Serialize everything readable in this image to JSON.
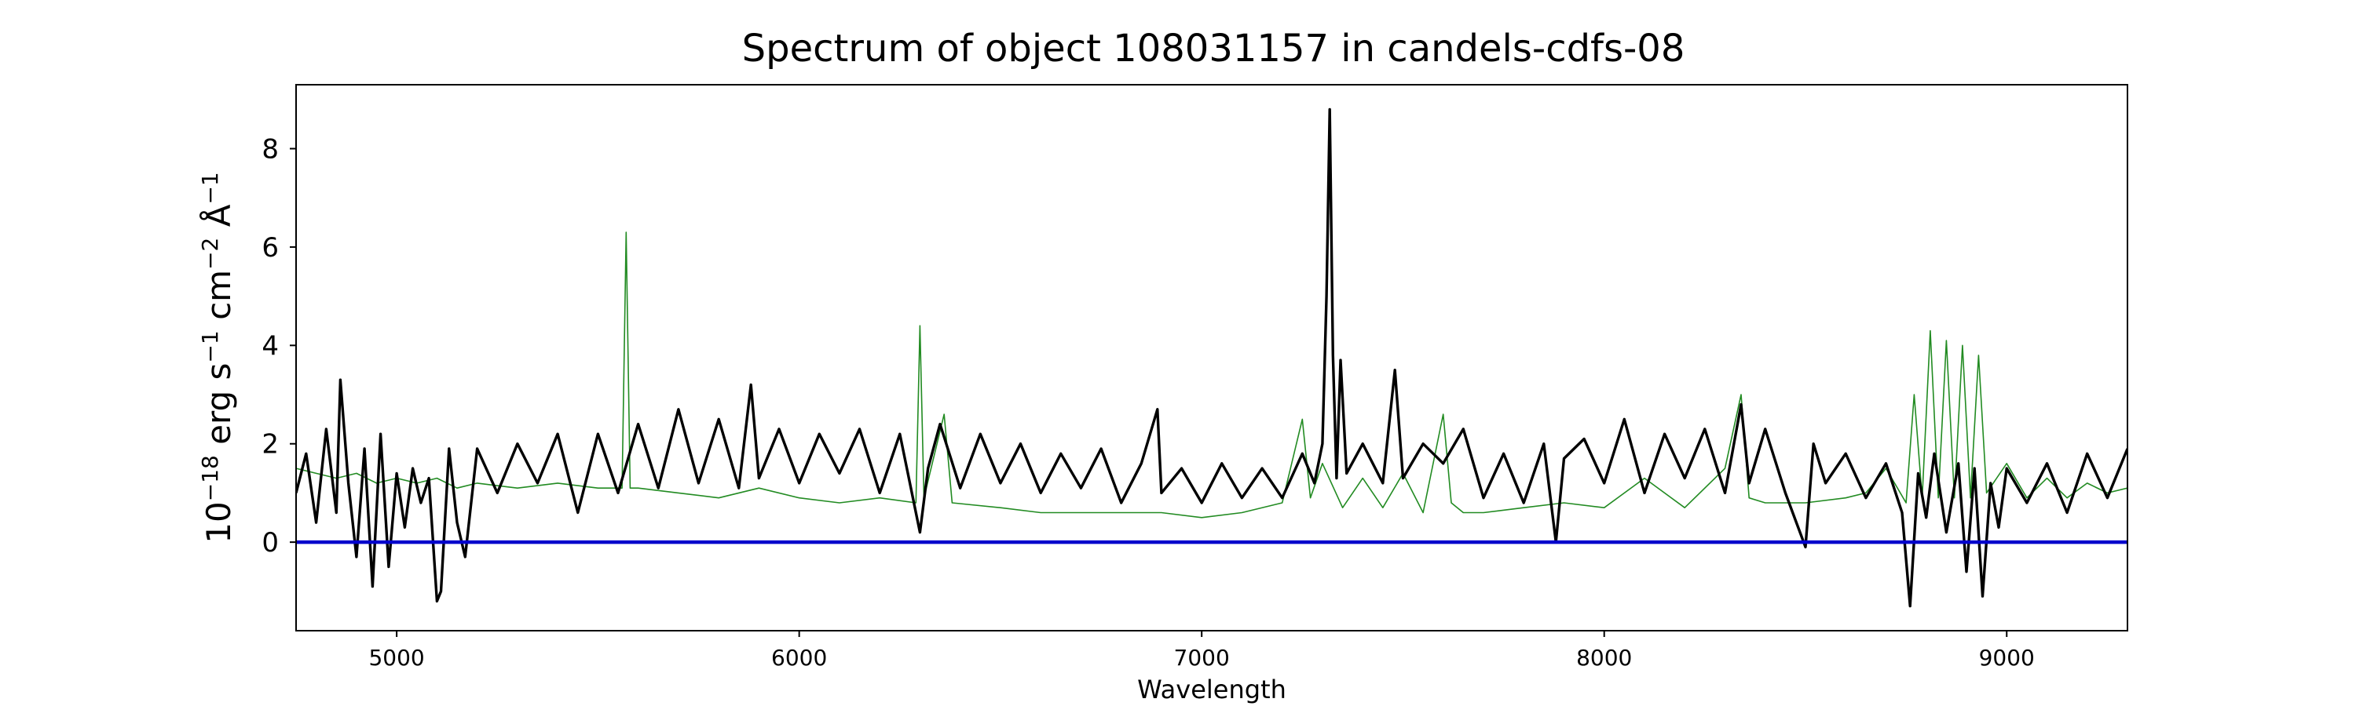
{
  "chart_data": {
    "type": "line",
    "title": "Spectrum of object 108031157 in candels-cdfs-08",
    "xlabel": "Wavelength",
    "ylabel_parts": [
      "10",
      "−18",
      " erg s",
      "−1",
      " cm",
      "−2",
      " Å",
      "−1"
    ],
    "xlim": [
      4750,
      9300
    ],
    "ylim": [
      -1.8,
      9.3
    ],
    "xticks": [
      5000,
      6000,
      7000,
      8000,
      9000
    ],
    "yticks": [
      0,
      2,
      4,
      6,
      8
    ],
    "grid": false,
    "colors": {
      "flux": "#000000",
      "noise": "#228B22",
      "zero": "#0000CC"
    },
    "series": [
      {
        "role": "flux",
        "points": [
          [
            4750,
            1.0
          ],
          [
            4775,
            1.8
          ],
          [
            4800,
            0.4
          ],
          [
            4825,
            2.3
          ],
          [
            4850,
            0.6
          ],
          [
            4860,
            3.3
          ],
          [
            4880,
            1.2
          ],
          [
            4900,
            -0.3
          ],
          [
            4920,
            1.9
          ],
          [
            4940,
            -0.9
          ],
          [
            4960,
            2.2
          ],
          [
            4980,
            -0.5
          ],
          [
            5000,
            1.4
          ],
          [
            5020,
            0.3
          ],
          [
            5040,
            1.5
          ],
          [
            5060,
            0.8
          ],
          [
            5080,
            1.3
          ],
          [
            5100,
            -1.2
          ],
          [
            5110,
            -1.0
          ],
          [
            5130,
            1.9
          ],
          [
            5150,
            0.4
          ],
          [
            5170,
            -0.3
          ],
          [
            5200,
            1.9
          ],
          [
            5250,
            1.0
          ],
          [
            5300,
            2.0
          ],
          [
            5350,
            1.2
          ],
          [
            5400,
            2.2
          ],
          [
            5450,
            0.6
          ],
          [
            5500,
            2.2
          ],
          [
            5550,
            1.0
          ],
          [
            5600,
            2.4
          ],
          [
            5650,
            1.1
          ],
          [
            5700,
            2.7
          ],
          [
            5750,
            1.2
          ],
          [
            5800,
            2.5
          ],
          [
            5850,
            1.1
          ],
          [
            5880,
            3.2
          ],
          [
            5900,
            1.3
          ],
          [
            5950,
            2.3
          ],
          [
            6000,
            1.2
          ],
          [
            6050,
            2.2
          ],
          [
            6100,
            1.4
          ],
          [
            6150,
            2.3
          ],
          [
            6200,
            1.0
          ],
          [
            6250,
            2.2
          ],
          [
            6300,
            0.2
          ],
          [
            6320,
            1.5
          ],
          [
            6350,
            2.4
          ],
          [
            6400,
            1.1
          ],
          [
            6450,
            2.2
          ],
          [
            6500,
            1.2
          ],
          [
            6550,
            2.0
          ],
          [
            6600,
            1.0
          ],
          [
            6650,
            1.8
          ],
          [
            6700,
            1.1
          ],
          [
            6750,
            1.9
          ],
          [
            6800,
            0.8
          ],
          [
            6850,
            1.6
          ],
          [
            6890,
            2.7
          ],
          [
            6900,
            1.0
          ],
          [
            6950,
            1.5
          ],
          [
            7000,
            0.8
          ],
          [
            7050,
            1.6
          ],
          [
            7100,
            0.9
          ],
          [
            7150,
            1.5
          ],
          [
            7200,
            0.9
          ],
          [
            7250,
            1.8
          ],
          [
            7280,
            1.2
          ],
          [
            7300,
            2.0
          ],
          [
            7310,
            5.0
          ],
          [
            7318,
            8.8
          ],
          [
            7326,
            3.8
          ],
          [
            7335,
            1.3
          ],
          [
            7345,
            3.7
          ],
          [
            7360,
            1.4
          ],
          [
            7400,
            2.0
          ],
          [
            7450,
            1.2
          ],
          [
            7480,
            3.5
          ],
          [
            7500,
            1.3
          ],
          [
            7550,
            2.0
          ],
          [
            7600,
            1.6
          ],
          [
            7650,
            2.3
          ],
          [
            7700,
            0.9
          ],
          [
            7750,
            1.8
          ],
          [
            7800,
            0.8
          ],
          [
            7850,
            2.0
          ],
          [
            7880,
            0.0
          ],
          [
            7900,
            1.7
          ],
          [
            7950,
            2.1
          ],
          [
            8000,
            1.2
          ],
          [
            8050,
            2.5
          ],
          [
            8100,
            1.0
          ],
          [
            8150,
            2.2
          ],
          [
            8200,
            1.3
          ],
          [
            8250,
            2.3
          ],
          [
            8300,
            1.0
          ],
          [
            8340,
            2.8
          ],
          [
            8360,
            1.2
          ],
          [
            8400,
            2.3
          ],
          [
            8450,
            1.0
          ],
          [
            8500,
            -0.1
          ],
          [
            8520,
            2.0
          ],
          [
            8550,
            1.2
          ],
          [
            8600,
            1.8
          ],
          [
            8650,
            0.9
          ],
          [
            8700,
            1.6
          ],
          [
            8740,
            0.6
          ],
          [
            8760,
            -1.3
          ],
          [
            8780,
            1.4
          ],
          [
            8800,
            0.5
          ],
          [
            8820,
            1.8
          ],
          [
            8850,
            0.2
          ],
          [
            8880,
            1.6
          ],
          [
            8900,
            -0.6
          ],
          [
            8920,
            1.5
          ],
          [
            8940,
            -1.1
          ],
          [
            8960,
            1.2
          ],
          [
            8980,
            0.3
          ],
          [
            9000,
            1.5
          ],
          [
            9050,
            0.8
          ],
          [
            9100,
            1.6
          ],
          [
            9150,
            0.6
          ],
          [
            9200,
            1.8
          ],
          [
            9250,
            0.9
          ],
          [
            9300,
            1.9
          ]
        ]
      },
      {
        "role": "noise",
        "points": [
          [
            4750,
            1.5
          ],
          [
            4800,
            1.4
          ],
          [
            4850,
            1.3
          ],
          [
            4900,
            1.4
          ],
          [
            4950,
            1.2
          ],
          [
            5000,
            1.3
          ],
          [
            5050,
            1.2
          ],
          [
            5100,
            1.3
          ],
          [
            5150,
            1.1
          ],
          [
            5200,
            1.2
          ],
          [
            5300,
            1.1
          ],
          [
            5400,
            1.2
          ],
          [
            5500,
            1.1
          ],
          [
            5560,
            1.1
          ],
          [
            5570,
            6.3
          ],
          [
            5580,
            1.1
          ],
          [
            5600,
            1.1
          ],
          [
            5700,
            1.0
          ],
          [
            5800,
            0.9
          ],
          [
            5900,
            1.1
          ],
          [
            6000,
            0.9
          ],
          [
            6100,
            0.8
          ],
          [
            6200,
            0.9
          ],
          [
            6290,
            0.8
          ],
          [
            6300,
            4.4
          ],
          [
            6310,
            0.9
          ],
          [
            6360,
            2.6
          ],
          [
            6380,
            0.8
          ],
          [
            6500,
            0.7
          ],
          [
            6600,
            0.6
          ],
          [
            6700,
            0.6
          ],
          [
            6800,
            0.6
          ],
          [
            6900,
            0.6
          ],
          [
            7000,
            0.5
          ],
          [
            7100,
            0.6
          ],
          [
            7200,
            0.8
          ],
          [
            7250,
            2.5
          ],
          [
            7270,
            0.9
          ],
          [
            7300,
            1.6
          ],
          [
            7350,
            0.7
          ],
          [
            7400,
            1.3
          ],
          [
            7450,
            0.7
          ],
          [
            7500,
            1.4
          ],
          [
            7550,
            0.6
          ],
          [
            7600,
            2.6
          ],
          [
            7620,
            0.8
          ],
          [
            7650,
            0.6
          ],
          [
            7700,
            0.6
          ],
          [
            7800,
            0.7
          ],
          [
            7900,
            0.8
          ],
          [
            8000,
            0.7
          ],
          [
            8100,
            1.3
          ],
          [
            8200,
            0.7
          ],
          [
            8300,
            1.5
          ],
          [
            8340,
            3.0
          ],
          [
            8360,
            0.9
          ],
          [
            8400,
            0.8
          ],
          [
            8500,
            0.8
          ],
          [
            8600,
            0.9
          ],
          [
            8650,
            1.0
          ],
          [
            8700,
            1.5
          ],
          [
            8750,
            0.8
          ],
          [
            8770,
            3.0
          ],
          [
            8790,
            0.9
          ],
          [
            8810,
            4.3
          ],
          [
            8830,
            0.9
          ],
          [
            8850,
            4.1
          ],
          [
            8870,
            0.9
          ],
          [
            8890,
            4.0
          ],
          [
            8910,
            0.9
          ],
          [
            8930,
            3.8
          ],
          [
            8950,
            1.0
          ],
          [
            9000,
            1.6
          ],
          [
            9050,
            0.9
          ],
          [
            9100,
            1.3
          ],
          [
            9150,
            0.9
          ],
          [
            9200,
            1.2
          ],
          [
            9250,
            1.0
          ],
          [
            9300,
            1.1
          ]
        ]
      },
      {
        "role": "zero",
        "points": [
          [
            4750,
            0
          ],
          [
            9300,
            0
          ]
        ]
      }
    ]
  }
}
